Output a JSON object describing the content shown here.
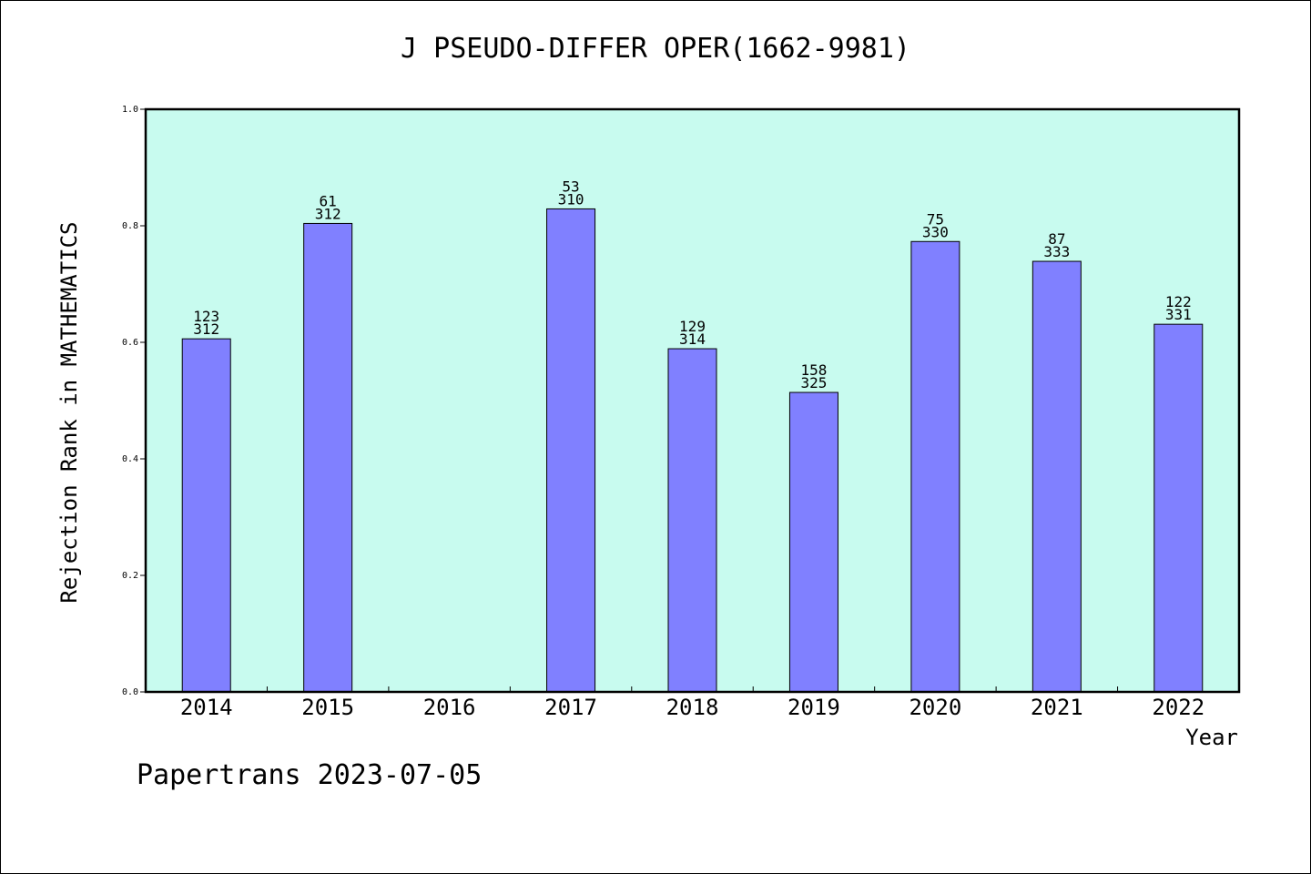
{
  "chart_data": {
    "type": "bar",
    "title": "J PSEUDO-DIFFER OPER(1662-9981)",
    "xlabel": "Year",
    "ylabel": "Rejection Rank in MATHEMATICS",
    "ylim": [
      0,
      1.0
    ],
    "yticks": [
      "0.0",
      "0.2",
      "0.4",
      "0.6",
      "0.8",
      "1.0"
    ],
    "categories": [
      "2014",
      "2015",
      "2016",
      "2017",
      "2018",
      "2019",
      "2020",
      "2021",
      "2022"
    ],
    "values": [
      0.606,
      0.804,
      null,
      0.829,
      0.589,
      0.514,
      0.773,
      0.739,
      0.631
    ],
    "labels_top": [
      "123",
      "61",
      "",
      "53",
      "129",
      "158",
      "75",
      "87",
      "122"
    ],
    "labels_bottom": [
      "312",
      "312",
      "",
      "310",
      "314",
      "325",
      "330",
      "333",
      "331"
    ],
    "grid": false,
    "colors": {
      "plot_bg": "#c8fbef",
      "bar": "#8080ff",
      "edge": "#000000"
    }
  },
  "footer": "Papertrans 2023-07-05"
}
